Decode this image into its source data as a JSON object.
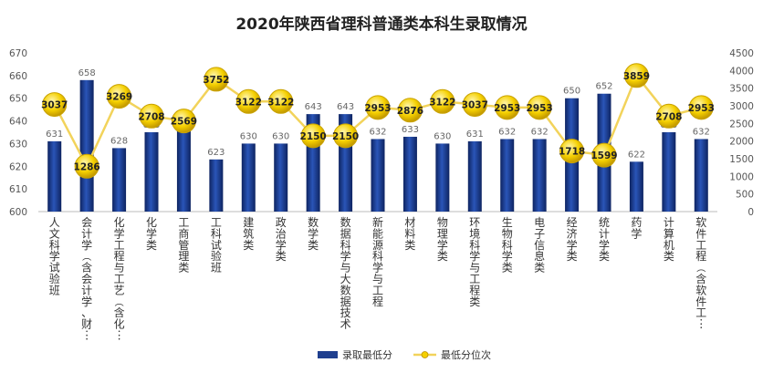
{
  "chart_data": {
    "type": "bar",
    "title": "2020年陕西省理科普通类本科生录取情况",
    "categories": [
      "人文科学试验班",
      "会计学（含会计学、财…",
      "化学工程与工艺（含化…",
      "化学类",
      "工商管理类",
      "工科试验班",
      "建筑类",
      "政治学类",
      "数学类",
      "数据科学与大数据技术",
      "新能源科学与工程",
      "材料类",
      "物理学类",
      "环境科学与工程类",
      "生物科学类",
      "电子信息类",
      "经济学类",
      "统计学类",
      "药学",
      "计算机类",
      "软件工程（含软件工…"
    ],
    "series": [
      {
        "name": "录取最低分",
        "type": "bar",
        "axis": "left",
        "color": "#1F3F8F",
        "values": [
          631,
          658,
          628,
          635,
          637,
          623,
          630,
          630,
          643,
          643,
          632,
          633,
          630,
          631,
          632,
          632,
          650,
          652,
          622,
          635,
          632
        ]
      },
      {
        "name": "最低分位次",
        "type": "line",
        "axis": "right",
        "color": "#F2D35B",
        "values": [
          3037,
          1286,
          3269,
          2708,
          2569,
          3752,
          3122,
          3122,
          2150,
          2150,
          2953,
          2876,
          3122,
          3037,
          2953,
          2953,
          1718,
          1599,
          3859,
          2708,
          2953
        ]
      }
    ],
    "y_left": {
      "min": 600,
      "max": 670,
      "ticks": [
        600,
        610,
        620,
        630,
        640,
        650,
        660,
        670
      ]
    },
    "y_right": {
      "min": 0,
      "max": 4500,
      "ticks": [
        0,
        500,
        1000,
        1500,
        2000,
        2500,
        3000,
        3500,
        4000,
        4500
      ]
    },
    "grid": false,
    "legend_position": "bottom-center"
  }
}
